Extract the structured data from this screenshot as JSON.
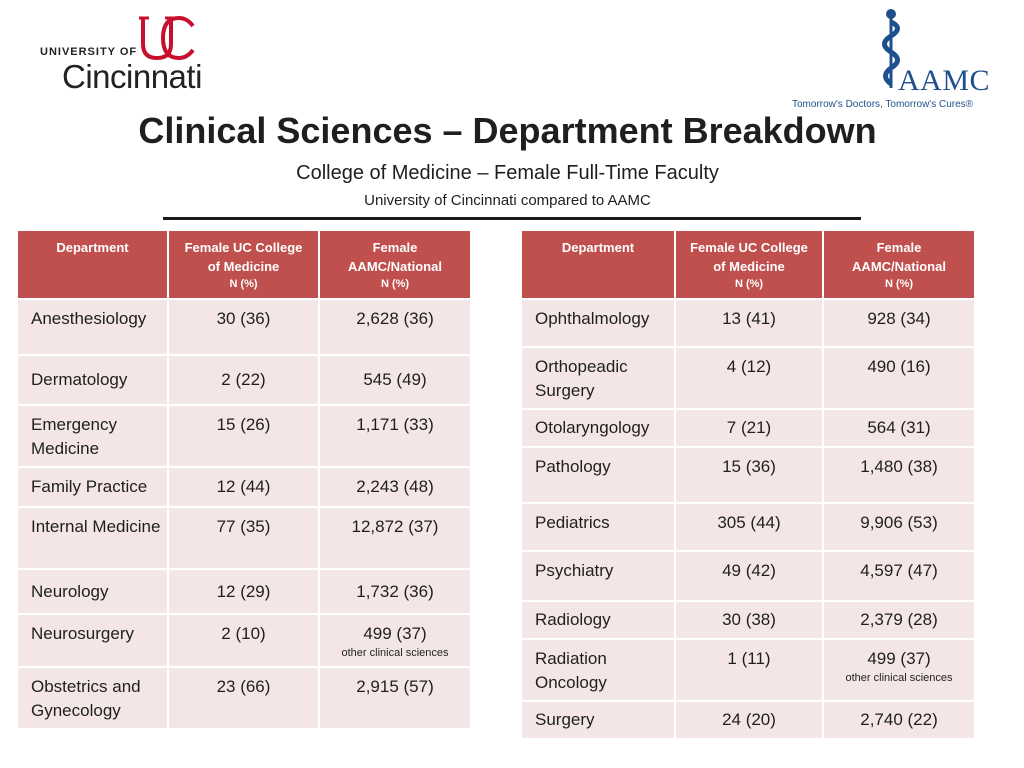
{
  "header": {
    "uc_logo": {
      "small_text": "UNIVERSITY OF",
      "big_text": "Cincinnati",
      "mark": "UC"
    },
    "aamc_logo": {
      "text": "AAMC",
      "tagline": "Tomorrow's Doctors, Tomorrow's Cures®"
    },
    "title": "Clinical Sciences – Department Breakdown",
    "subtitle": "College of Medicine – Female Full-Time Faculty",
    "subtitle2": "University of Cincinnati compared to AAMC"
  },
  "columns": {
    "department": "Department",
    "uc_line1": "Female UC College",
    "uc_line2": "of Medicine",
    "aamc_line1": "Female",
    "aamc_line2": "AAMC/National",
    "np": "N (%)"
  },
  "left_table": {
    "rows": [
      {
        "dept": "Anesthesiology",
        "uc": "30 (36)",
        "aamc": "2,628 (36)",
        "note": ""
      },
      {
        "dept": "Dermatology",
        "uc": "2 (22)",
        "aamc": "545 (49)",
        "note": ""
      },
      {
        "dept": "Emergency Medicine",
        "uc": "15 (26)",
        "aamc": "1,171 (33)",
        "note": ""
      },
      {
        "dept": "Family Practice",
        "uc": "12 (44)",
        "aamc": "2,243 (48)",
        "note": ""
      },
      {
        "dept": "Internal Medicine",
        "uc": "77 (35)",
        "aamc": "12,872 (37)",
        "note": ""
      },
      {
        "dept": "Neurology",
        "uc": "12 (29)",
        "aamc": "1,732 (36)",
        "note": ""
      },
      {
        "dept": "Neurosurgery",
        "uc": "2 (10)",
        "aamc": "499 (37)",
        "note": "other clinical sciences"
      },
      {
        "dept": "Obstetrics and Gynecology",
        "uc": "23 (66)",
        "aamc": "2,915 (57)",
        "note": ""
      }
    ]
  },
  "right_table": {
    "rows": [
      {
        "dept": "Ophthalmology",
        "uc": "13 (41)",
        "aamc": "928 (34)",
        "note": ""
      },
      {
        "dept": "Orthopeadic Surgery",
        "uc": "4 (12)",
        "aamc": "490 (16)",
        "note": ""
      },
      {
        "dept": "Otolaryngology",
        "uc": "7 (21)",
        "aamc": "564 (31)",
        "note": ""
      },
      {
        "dept": "Pathology",
        "uc": "15 (36)",
        "aamc": "1,480 (38)",
        "note": ""
      },
      {
        "dept": "Pediatrics",
        "uc": "305 (44)",
        "aamc": "9,906 (53)",
        "note": ""
      },
      {
        "dept": "Psychiatry",
        "uc": "49 (42)",
        "aamc": "4,597 (47)",
        "note": ""
      },
      {
        "dept": "Radiology",
        "uc": "30 (38)",
        "aamc": "2,379 (28)",
        "note": ""
      },
      {
        "dept": "Radiation Oncology",
        "uc": "1 (11)",
        "aamc": "499 (37)",
        "note": "other clinical sciences"
      },
      {
        "dept": "Surgery",
        "uc": "24 (20)",
        "aamc": "2,740 (22)",
        "note": ""
      }
    ]
  },
  "colors": {
    "header_red": "#c0504d",
    "cell_pink": "#f4e6e6",
    "aamc_blue": "#1f4f8c",
    "uc_red": "#c8102e"
  }
}
